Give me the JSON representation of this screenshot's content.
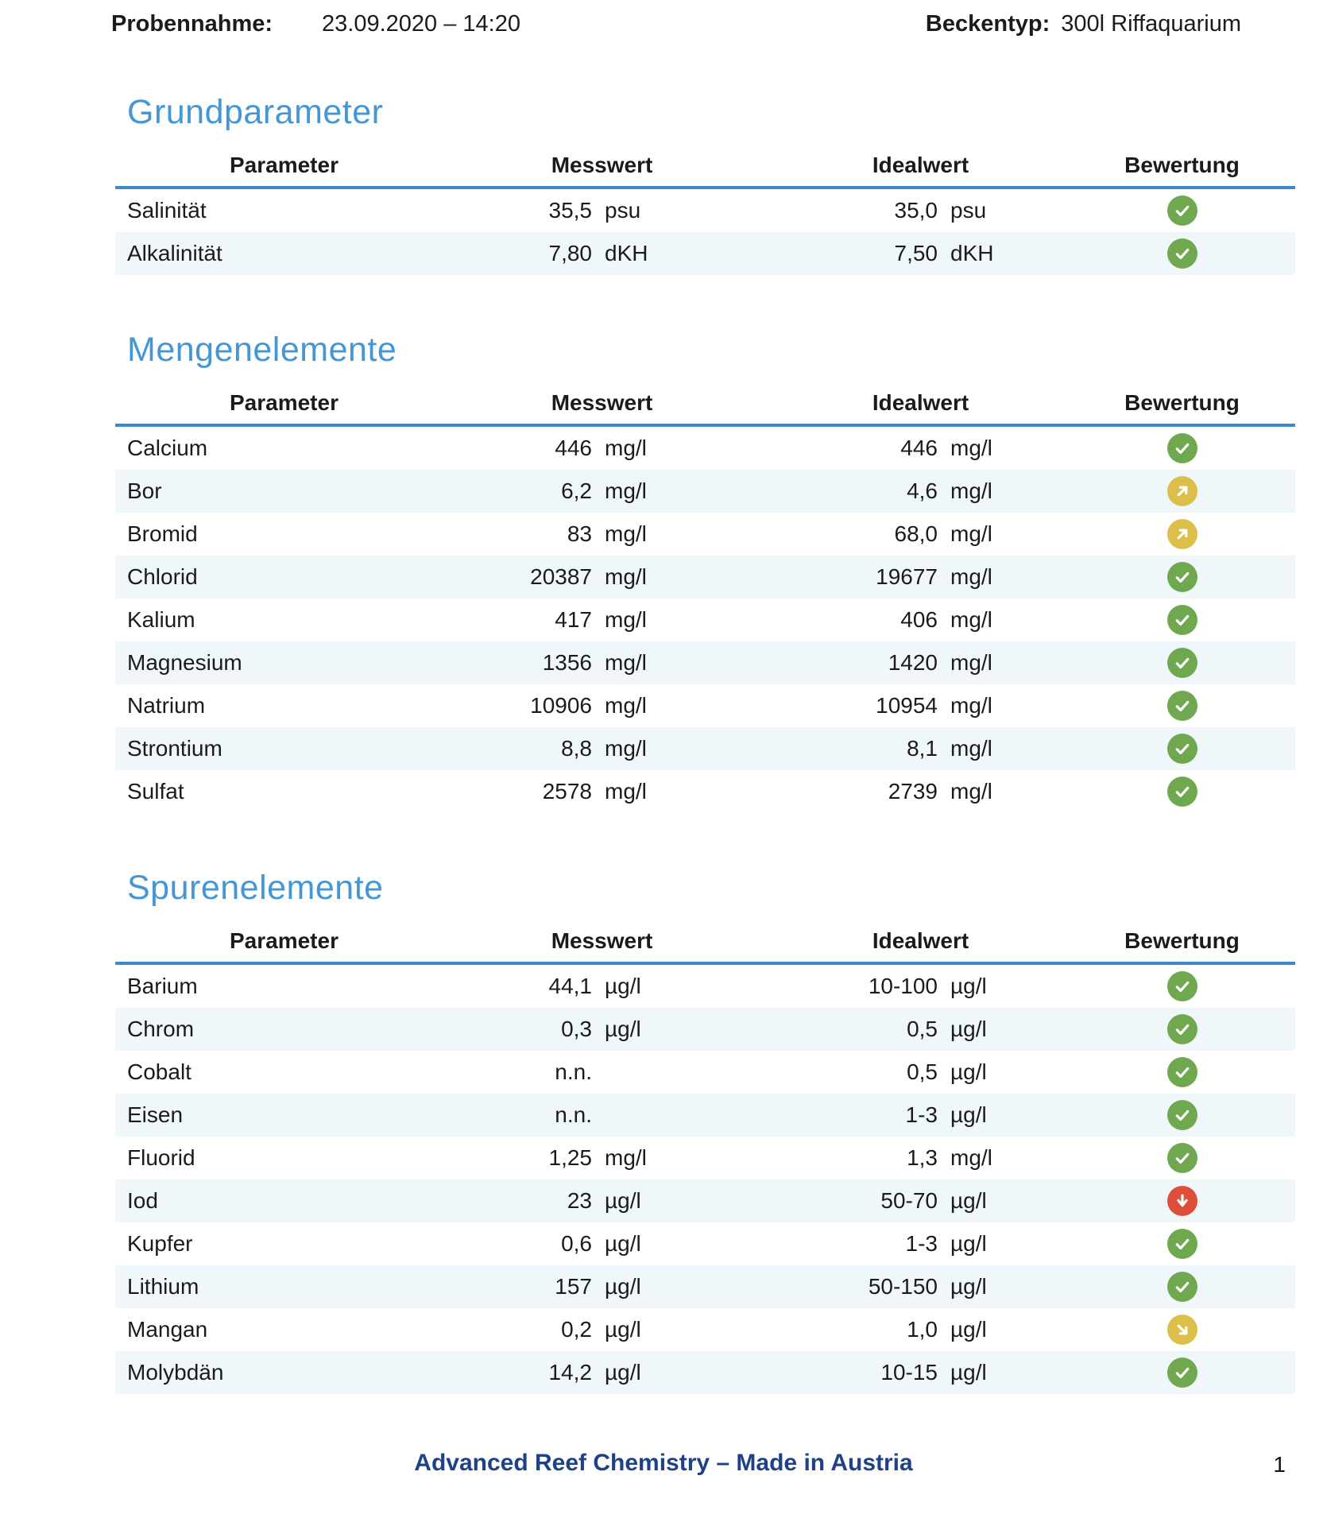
{
  "meta": {
    "sample_label": "Probennahme:",
    "sample_value": "23.09.2020 – 14:20",
    "tank_label": "Beckentyp:",
    "tank_value": "300l Riffaquarium"
  },
  "columns": {
    "parameter": "Parameter",
    "messwert": "Messwert",
    "idealwert": "Idealwert",
    "bewertung": "Bewertung"
  },
  "colors": {
    "heading": "#4496d5",
    "rule": "#3d89cc",
    "stripe": "#f0f7fa",
    "footer": "#1e4189",
    "status_ok": "#6fa84f",
    "status_warn": "#dcbf4b",
    "status_alert": "#dd4f3b"
  },
  "status_icons": {
    "ok": "check-circle-icon",
    "slightly-high": "arrow-up-right-icon",
    "slightly-low": "arrow-down-right-icon",
    "low": "arrow-down-icon"
  },
  "sections": [
    {
      "title": "Grundparameter",
      "rows": [
        {
          "parameter": "Salinität",
          "messwert": "35,5",
          "messwert_unit": "psu",
          "idealwert": "35,0",
          "idealwert_unit": "psu",
          "bewertung": "ok"
        },
        {
          "parameter": "Alkalinität",
          "messwert": "7,80",
          "messwert_unit": "dKH",
          "idealwert": "7,50",
          "idealwert_unit": "dKH",
          "bewertung": "ok"
        }
      ]
    },
    {
      "title": "Mengenelemente",
      "rows": [
        {
          "parameter": "Calcium",
          "messwert": "446",
          "messwert_unit": "mg/l",
          "idealwert": "446",
          "idealwert_unit": "mg/l",
          "bewertung": "ok"
        },
        {
          "parameter": "Bor",
          "messwert": "6,2",
          "messwert_unit": "mg/l",
          "idealwert": "4,6",
          "idealwert_unit": "mg/l",
          "bewertung": "slightly-high"
        },
        {
          "parameter": "Bromid",
          "messwert": "83",
          "messwert_unit": "mg/l",
          "idealwert": "68,0",
          "idealwert_unit": "mg/l",
          "bewertung": "slightly-high"
        },
        {
          "parameter": "Chlorid",
          "messwert": "20387",
          "messwert_unit": "mg/l",
          "idealwert": "19677",
          "idealwert_unit": "mg/l",
          "bewertung": "ok"
        },
        {
          "parameter": "Kalium",
          "messwert": "417",
          "messwert_unit": "mg/l",
          "idealwert": "406",
          "idealwert_unit": "mg/l",
          "bewertung": "ok"
        },
        {
          "parameter": "Magnesium",
          "messwert": "1356",
          "messwert_unit": "mg/l",
          "idealwert": "1420",
          "idealwert_unit": "mg/l",
          "bewertung": "ok"
        },
        {
          "parameter": "Natrium",
          "messwert": "10906",
          "messwert_unit": "mg/l",
          "idealwert": "10954",
          "idealwert_unit": "mg/l",
          "bewertung": "ok"
        },
        {
          "parameter": "Strontium",
          "messwert": "8,8",
          "messwert_unit": "mg/l",
          "idealwert": "8,1",
          "idealwert_unit": "mg/l",
          "bewertung": "ok"
        },
        {
          "parameter": "Sulfat",
          "messwert": "2578",
          "messwert_unit": "mg/l",
          "idealwert": "2739",
          "idealwert_unit": "mg/l",
          "bewertung": "ok"
        }
      ]
    },
    {
      "title": "Spurenelemente",
      "rows": [
        {
          "parameter": "Barium",
          "messwert": "44,1",
          "messwert_unit": "µg/l",
          "idealwert": "10-100",
          "idealwert_unit": "µg/l",
          "bewertung": "ok"
        },
        {
          "parameter": "Chrom",
          "messwert": "0,3",
          "messwert_unit": "µg/l",
          "idealwert": "0,5",
          "idealwert_unit": "µg/l",
          "bewertung": "ok"
        },
        {
          "parameter": "Cobalt",
          "messwert": "n.n.",
          "messwert_unit": "",
          "idealwert": "0,5",
          "idealwert_unit": "µg/l",
          "bewertung": "ok"
        },
        {
          "parameter": "Eisen",
          "messwert": "n.n.",
          "messwert_unit": "",
          "idealwert": "1-3",
          "idealwert_unit": "µg/l",
          "bewertung": "ok"
        },
        {
          "parameter": "Fluorid",
          "messwert": "1,25",
          "messwert_unit": "mg/l",
          "idealwert": "1,3",
          "idealwert_unit": "mg/l",
          "bewertung": "ok"
        },
        {
          "parameter": "Iod",
          "messwert": "23",
          "messwert_unit": "µg/l",
          "idealwert": "50-70",
          "idealwert_unit": "µg/l",
          "bewertung": "low"
        },
        {
          "parameter": "Kupfer",
          "messwert": "0,6",
          "messwert_unit": "µg/l",
          "idealwert": "1-3",
          "idealwert_unit": "µg/l",
          "bewertung": "ok"
        },
        {
          "parameter": "Lithium",
          "messwert": "157",
          "messwert_unit": "µg/l",
          "idealwert": "50-150",
          "idealwert_unit": "µg/l",
          "bewertung": "ok"
        },
        {
          "parameter": "Mangan",
          "messwert": "0,2",
          "messwert_unit": "µg/l",
          "idealwert": "1,0",
          "idealwert_unit": "µg/l",
          "bewertung": "slightly-low"
        },
        {
          "parameter": "Molybdän",
          "messwert": "14,2",
          "messwert_unit": "µg/l",
          "idealwert": "10-15",
          "idealwert_unit": "µg/l",
          "bewertung": "ok"
        }
      ]
    }
  ],
  "footer": {
    "text": "Advanced Reef Chemistry – Made in Austria",
    "page": "1"
  }
}
